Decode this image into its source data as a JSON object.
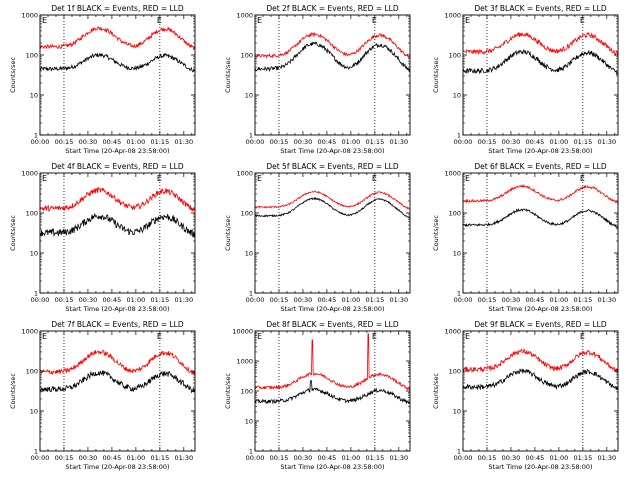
{
  "chart_data": [
    {
      "type": "line",
      "title": "Det 1f BLACK = Events, RED = LLD",
      "xlabel": "Start Time (20-Apr-08 23:58:00)",
      "ylabel": "Counts/sec",
      "yscale": "log",
      "ylim": [
        1,
        1000
      ],
      "x_ticks": [
        "00:00",
        "00:15",
        "00:30",
        "00:45",
        "01:00",
        "01:15",
        "01:30"
      ],
      "y_ticks": [
        "1",
        "10",
        "100",
        "1000"
      ],
      "markers": [
        {
          "label": "E",
          "x": "01:15"
        }
      ],
      "vlines": [
        "00:15",
        "01:15"
      ],
      "series": [
        {
          "color": "#000000",
          "base": 45,
          "peak": 100,
          "noise": 0.05,
          "spikes": []
        },
        {
          "color": "#ff0000",
          "base": 160,
          "peak": 470,
          "noise": 0.05,
          "spikes": []
        }
      ]
    },
    {
      "type": "line",
      "title": "Det 2f BLACK = Events, RED = LLD",
      "xlabel": "Start Time (20-Apr-08 23:58:00)",
      "ylabel": "Counts/sec",
      "yscale": "log",
      "ylim": [
        1,
        1000
      ],
      "x_ticks": [
        "00:00",
        "00:15",
        "00:30",
        "00:45",
        "01:00",
        "01:15",
        "01:30"
      ],
      "y_ticks": [
        "1",
        "10",
        "100",
        "1000"
      ],
      "markers": [
        {
          "label": "E",
          "x": "01:15"
        }
      ],
      "vlines": [
        "00:15",
        "01:15"
      ],
      "series": [
        {
          "color": "#000000",
          "base": 45,
          "peak": 190,
          "noise": 0.05,
          "spikes": []
        },
        {
          "color": "#ff0000",
          "base": 95,
          "peak": 330,
          "noise": 0.04,
          "spikes": []
        }
      ]
    },
    {
      "type": "line",
      "title": "Det 3f BLACK = Events, RED = LLD",
      "xlabel": "Start Time (20-Apr-08 23:58:00)",
      "ylabel": "Counts/sec",
      "yscale": "log",
      "ylim": [
        1,
        1000
      ],
      "x_ticks": [
        "00:00",
        "00:15",
        "00:30",
        "00:45",
        "01:00",
        "01:15",
        "01:30"
      ],
      "y_ticks": [
        "1",
        "10",
        "100",
        "1000"
      ],
      "markers": [
        {
          "label": "E",
          "x": "01:15"
        }
      ],
      "vlines": [
        "00:15",
        "01:15"
      ],
      "series": [
        {
          "color": "#000000",
          "base": 40,
          "peak": 120,
          "noise": 0.06,
          "spikes": []
        },
        {
          "color": "#ff0000",
          "base": 120,
          "peak": 330,
          "noise": 0.06,
          "spikes": []
        }
      ]
    },
    {
      "type": "line",
      "title": "Det 4f BLACK = Events, RED = LLD",
      "xlabel": "Start Time (20-Apr-08 23:58:00)",
      "ylabel": "Counts/sec",
      "yscale": "log",
      "ylim": [
        1,
        1000
      ],
      "x_ticks": [
        "00:00",
        "00:15",
        "00:30",
        "00:45",
        "01:00",
        "01:15",
        "01:30"
      ],
      "y_ticks": [
        "1",
        "10",
        "100",
        "1000"
      ],
      "markers": [
        {
          "label": "E",
          "x": "01:15"
        }
      ],
      "vlines": [
        "00:15",
        "01:15"
      ],
      "series": [
        {
          "color": "#000000",
          "base": 32,
          "peak": 85,
          "noise": 0.09,
          "spikes": []
        },
        {
          "color": "#ff0000",
          "base": 130,
          "peak": 370,
          "noise": 0.07,
          "spikes": []
        }
      ]
    },
    {
      "type": "line",
      "title": "Det 5f BLACK = Events, RED = LLD",
      "xlabel": "Start Time (20-Apr-08 23:58:00)",
      "ylabel": "Counts/sec",
      "yscale": "log",
      "ylim": [
        1,
        1000
      ],
      "x_ticks": [
        "00:00",
        "00:15",
        "00:30",
        "00:45",
        "01:00",
        "01:15",
        "01:30"
      ],
      "y_ticks": [
        "1",
        "10",
        "100",
        "1000"
      ],
      "markers": [
        {
          "label": "E",
          "x": "01:15"
        }
      ],
      "vlines": [
        "00:15",
        "01:15"
      ],
      "series": [
        {
          "color": "#000000",
          "base": 85,
          "peak": 230,
          "noise": 0.02,
          "spikes": []
        },
        {
          "color": "#ff0000",
          "base": 140,
          "peak": 340,
          "noise": 0.02,
          "spikes": []
        }
      ]
    },
    {
      "type": "line",
      "title": "Det 6f BLACK = Events, RED = LLD",
      "xlabel": "Start Time (20-Apr-08 23:58:00)",
      "ylabel": "Counts/sec",
      "yscale": "log",
      "ylim": [
        1,
        1000
      ],
      "x_ticks": [
        "00:00",
        "00:15",
        "00:30",
        "00:45",
        "01:00",
        "01:15",
        "01:30"
      ],
      "y_ticks": [
        "1",
        "10",
        "100",
        "1000"
      ],
      "markers": [
        {
          "label": "E",
          "x": "01:15"
        }
      ],
      "vlines": [
        "00:15",
        "01:15"
      ],
      "series": [
        {
          "color": "#000000",
          "base": 50,
          "peak": 120,
          "noise": 0.03,
          "spikes": []
        },
        {
          "color": "#ff0000",
          "base": 200,
          "peak": 470,
          "noise": 0.03,
          "spikes": []
        }
      ]
    },
    {
      "type": "line",
      "title": "Det 7f BLACK = Events, RED = LLD",
      "xlabel": "Start Time (20-Apr-08 23:58:00)",
      "ylabel": "Counts/sec",
      "yscale": "log",
      "ylim": [
        1,
        1000
      ],
      "x_ticks": [
        "00:00",
        "00:15",
        "00:30",
        "00:45",
        "01:00",
        "01:15",
        "01:30"
      ],
      "y_ticks": [
        "1",
        "10",
        "100",
        "1000"
      ],
      "markers": [
        {
          "label": "E",
          "x": "01:15"
        }
      ],
      "vlines": [
        "00:15",
        "01:15"
      ],
      "series": [
        {
          "color": "#000000",
          "base": 35,
          "peak": 90,
          "noise": 0.07,
          "spikes": []
        },
        {
          "color": "#ff0000",
          "base": 95,
          "peak": 300,
          "noise": 0.06,
          "spikes": []
        }
      ]
    },
    {
      "type": "line",
      "title": "Det 8f BLACK = Events, RED = LLD",
      "xlabel": "Start Time (20-Apr-08 23:58:00)",
      "ylabel": "Counts/sec",
      "yscale": "log",
      "ylim": [
        1,
        10000
      ],
      "x_ticks": [
        "00:00",
        "00:15",
        "00:30",
        "00:45",
        "01:00",
        "01:15",
        "01:30"
      ],
      "y_ticks": [
        "1",
        "10",
        "100",
        "1000",
        "10000"
      ],
      "markers": [
        {
          "label": "E",
          "x": "01:15"
        }
      ],
      "vlines": [
        "00:15",
        "01:15"
      ],
      "series": [
        {
          "color": "#000000",
          "base": 45,
          "peak": 110,
          "noise": 0.06,
          "spikes": [
            {
              "x": "00:35",
              "value": 220
            }
          ]
        },
        {
          "color": "#ff0000",
          "base": 130,
          "peak": 380,
          "noise": 0.05,
          "spikes": [
            {
              "x": "00:36",
              "value": 5000
            },
            {
              "x": "01:11",
              "value": 8000
            }
          ]
        }
      ]
    },
    {
      "type": "line",
      "title": "Det 9f BLACK = Events, RED = LLD",
      "xlabel": "Start Time (20-Apr-08 23:58:00)",
      "ylabel": "Counts/sec",
      "yscale": "log",
      "ylim": [
        1,
        1000
      ],
      "x_ticks": [
        "00:00",
        "00:15",
        "00:30",
        "00:45",
        "01:00",
        "01:15",
        "01:30"
      ],
      "y_ticks": [
        "1",
        "10",
        "100",
        "1000"
      ],
      "markers": [
        {
          "label": "E",
          "x": "01:15"
        }
      ],
      "vlines": [
        "00:15",
        "01:15"
      ],
      "series": [
        {
          "color": "#000000",
          "base": 40,
          "peak": 100,
          "noise": 0.06,
          "spikes": []
        },
        {
          "color": "#ff0000",
          "base": 110,
          "peak": 310,
          "noise": 0.06,
          "spikes": []
        }
      ]
    }
  ]
}
